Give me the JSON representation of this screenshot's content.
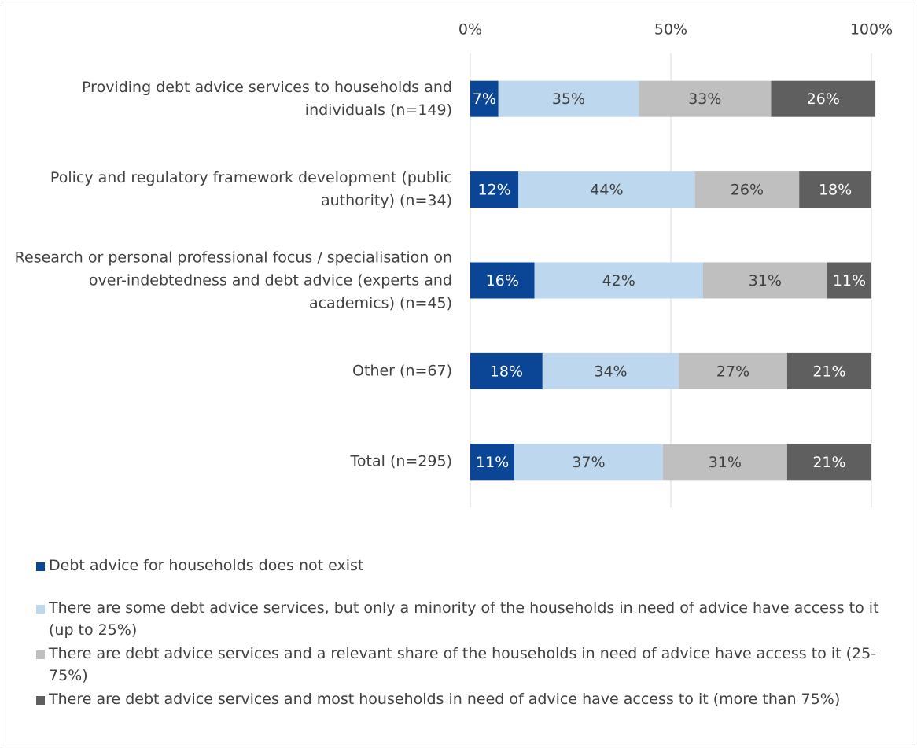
{
  "chart_data": {
    "type": "stacked_bar_horizontal",
    "categories": [
      "Providing debt advice services to households and individuals (n=149)",
      "Policy and regulatory framework development (public authority) (n=34)",
      "Research or personal professional focus / specialisation on over-indebtedness and debt advice (experts and academics) (n=45)",
      "Other (n=67)",
      "Total (n=295)"
    ],
    "series": [
      {
        "name": "Debt advice for households does not exist",
        "color": "#0b4596",
        "values": [
          7,
          12,
          16,
          18,
          11
        ],
        "value_labels": [
          "7%",
          "12%",
          "16%",
          "18%",
          "11%"
        ]
      },
      {
        "name": "There are some debt advice services, but only a minority of the households in need of advice have access to it (up to 25%)",
        "color": "#bdd7ee",
        "values": [
          35,
          44,
          42,
          34,
          37
        ],
        "value_labels": [
          "35%",
          "44%",
          "42%",
          "34%",
          "37%"
        ]
      },
      {
        "name": "There are debt advice services and a relevant share of the households in need of advice have access to it (25-75%)",
        "color": "#bfbfbf",
        "values": [
          33,
          26,
          31,
          27,
          31
        ],
        "value_labels": [
          "33%",
          "26%",
          "31%",
          "27%",
          "31%"
        ]
      },
      {
        "name": "There are debt advice services and most households in need of advice have access to it (more than 75%)",
        "color": "#5f5f5f",
        "values": [
          26,
          18,
          11,
          21,
          21
        ],
        "value_labels": [
          "26%",
          "18%",
          "11%",
          "21%",
          "21%"
        ]
      }
    ],
    "xlim": [
      0,
      100
    ],
    "xticks": [
      {
        "value": 0,
        "label": "0%"
      },
      {
        "value": 50,
        "label": "50%"
      },
      {
        "value": 100,
        "label": "100%"
      }
    ],
    "grid": true,
    "legend": "bottom"
  }
}
